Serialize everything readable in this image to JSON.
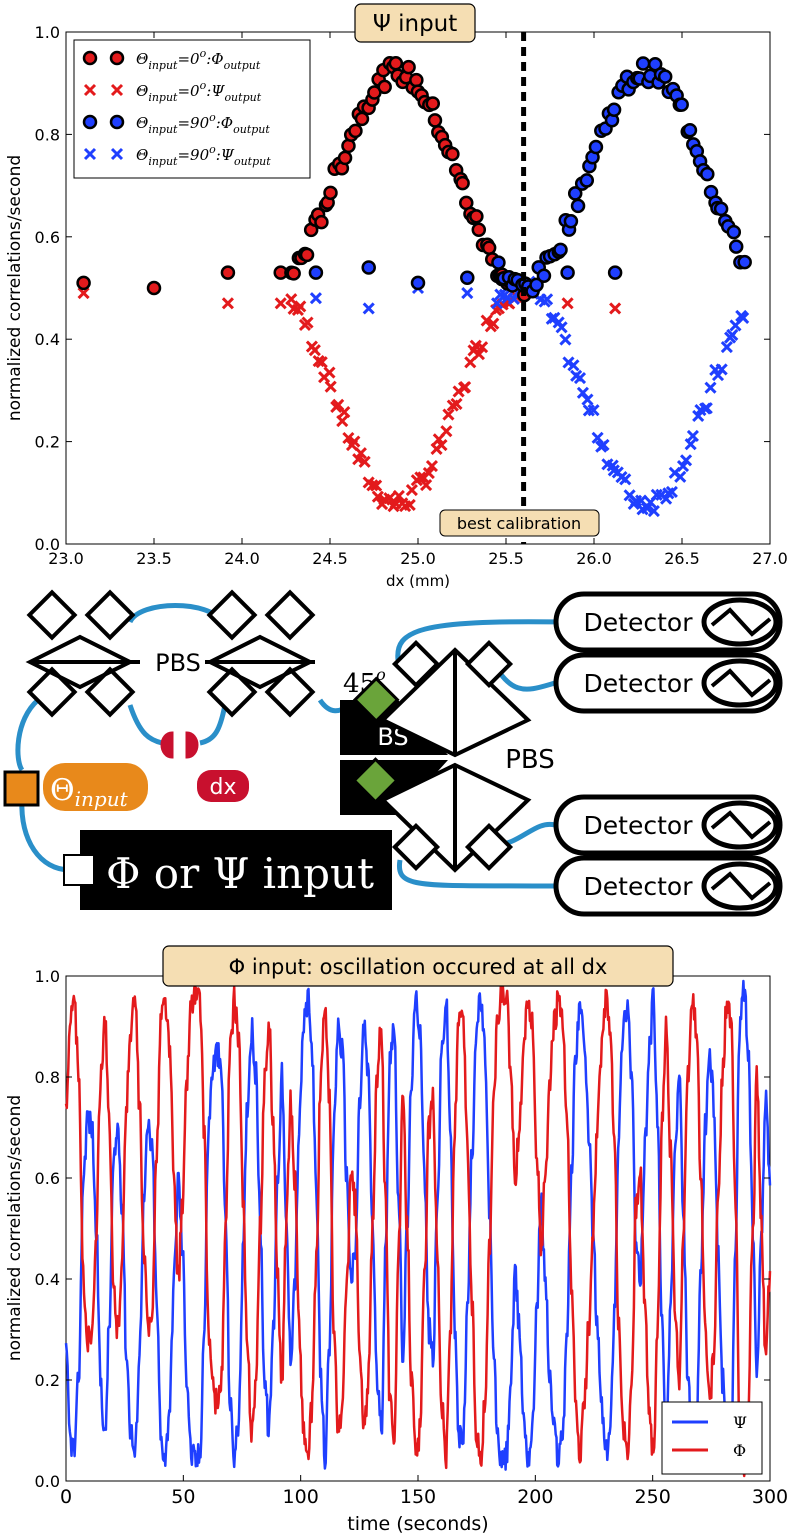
{
  "chart_data": [
    {
      "type": "scatter",
      "title": "Ψ input",
      "xlabel": "dx (mm)",
      "ylabel": "normalized correlations/second",
      "xlim": [
        23.0,
        27.0
      ],
      "ylim": [
        0.0,
        1.0
      ],
      "x_ticks": [
        "23.0",
        "23.5",
        "24.0",
        "24.5",
        "25.0",
        "25.5",
        "26.0",
        "26.5",
        "27.0"
      ],
      "y_ticks": [
        "0.0",
        "0.2",
        "0.4",
        "0.6",
        "0.8",
        "1.0"
      ],
      "annotation": {
        "label": "best calibration",
        "x": 25.6
      },
      "legend_position": "top-left",
      "series": [
        {
          "name": "Θinput = 0°: Φoutput",
          "sub": "input",
          "sub2": "output",
          "deg": "0",
          "letter": "Φ",
          "marker": "circle",
          "color": "#e31a1c",
          "scatter_points": [
            [
              23.1,
              0.51
            ],
            [
              23.5,
              0.5
            ],
            [
              23.92,
              0.53
            ],
            [
              24.22,
              0.53
            ]
          ],
          "wave": {
            "x0": 24.28,
            "x1": 25.6,
            "center": 24.88,
            "amp": 0.42,
            "base": 0.515,
            "period": 1.42,
            "n": 70
          }
        },
        {
          "name": "Θinput = 0°: Ψoutput",
          "sub": "input",
          "sub2": "output",
          "deg": "0",
          "letter": "Ψ",
          "marker": "x",
          "color": "#e31a1c",
          "scatter_points": [
            [
              23.1,
              0.49
            ],
            [
              23.5,
              0.5
            ],
            [
              23.92,
              0.47
            ],
            [
              24.22,
              0.47
            ],
            [
              25.85,
              0.47
            ],
            [
              26.12,
              0.46
            ]
          ],
          "wave": {
            "x0": 24.28,
            "x1": 25.6,
            "center": 24.88,
            "amp": -0.42,
            "base": 0.5,
            "period": 1.42,
            "n": 70
          }
        },
        {
          "name": "Θinput = 90°: Φoutput",
          "sub": "input",
          "sub2": "output",
          "deg": "90",
          "letter": "Φ",
          "marker": "circle",
          "color": "#1f3fff",
          "scatter_points": [
            [
              24.42,
              0.53
            ],
            [
              24.72,
              0.54
            ],
            [
              25.0,
              0.51
            ],
            [
              25.28,
              0.52
            ],
            [
              25.85,
              0.53
            ],
            [
              26.12,
              0.53
            ]
          ],
          "wave": {
            "x0": 25.45,
            "x1": 26.85,
            "center": 26.3,
            "amp": 0.42,
            "base": 0.515,
            "period": 1.42,
            "n": 70
          }
        },
        {
          "name": "Θinput = 90°: Ψoutput",
          "sub": "input",
          "sub2": "output",
          "deg": "90",
          "letter": "Ψ",
          "marker": "x",
          "color": "#1f3fff",
          "scatter_points": [
            [
              24.42,
              0.48
            ],
            [
              24.72,
              0.46
            ],
            [
              25.0,
              0.5
            ],
            [
              25.28,
              0.49
            ]
          ],
          "wave": {
            "x0": 25.45,
            "x1": 26.85,
            "center": 26.3,
            "amp": -0.42,
            "base": 0.5,
            "period": 1.42,
            "n": 70
          }
        }
      ]
    },
    {
      "type": "line",
      "title": "Φ input: oscillation occured at all dx",
      "xlabel": "time (seconds)",
      "ylabel": "normalized correlations/second",
      "xlim": [
        0,
        300
      ],
      "ylim": [
        0.0,
        1.0
      ],
      "x_ticks": [
        "0",
        "50",
        "100",
        "150",
        "200",
        "250",
        "300"
      ],
      "y_ticks": [
        "0.0",
        "0.2",
        "0.4",
        "0.6",
        "0.8",
        "1.0"
      ],
      "legend_position": "bottom-right",
      "series": [
        {
          "name": "Ψ",
          "color": "#1f3fff",
          "values": [
            0.25,
            0.08,
            0.06,
            0.22,
            0.6,
            0.72,
            0.7,
            0.5,
            0.2,
            0.08,
            0.3,
            0.62,
            0.7,
            0.55,
            0.25,
            0.1,
            0.05,
            0.25,
            0.55,
            0.7,
            0.65,
            0.35,
            0.08,
            0.05,
            0.15,
            0.4,
            0.6,
            0.45,
            0.2,
            0.05,
            0.04,
            0.05,
            0.3,
            0.7,
            0.82,
            0.85,
            0.8,
            0.5,
            0.15,
            0.05,
            0.12,
            0.45,
            0.75,
            0.9,
            0.8,
            0.5,
            0.2,
            0.1,
            0.3,
            0.6,
            0.8,
            0.5,
            0.25,
            0.4,
            0.7,
            0.9,
            0.95,
            0.85,
            0.55,
            0.2,
            0.05,
            0.25,
            0.7,
            0.9,
            0.85,
            0.6,
            0.4,
            0.45,
            0.75,
            0.9,
            0.8,
            0.5,
            0.2,
            0.1,
            0.45,
            0.85,
            0.9,
            0.55,
            0.25,
            0.5,
            0.8,
            0.95,
            0.9,
            0.6,
            0.3,
            0.25,
            0.55,
            0.85,
            0.95,
            0.7,
            0.3,
            0.08,
            0.1,
            0.35,
            0.65,
            0.9,
            0.95,
            0.85,
            0.55,
            0.25,
            0.08,
            0.03,
            0.05,
            0.2,
            0.4,
            0.3,
            0.12,
            0.05,
            0.1,
            0.35,
            0.55,
            0.4,
            0.2,
            0.1,
            0.05,
            0.1,
            0.3,
            0.6,
            0.85,
            0.95,
            0.85,
            0.7,
            0.5,
            0.3,
            0.15,
            0.05,
            0.1,
            0.35,
            0.7,
            0.9,
            0.95,
            0.8,
            0.45,
            0.4,
            0.65,
            0.85,
            0.95,
            0.7,
            0.3,
            0.1,
            0.35,
            0.65,
            0.8,
            0.5,
            0.2,
            0.05,
            0.1,
            0.4,
            0.7,
            0.85,
            0.75,
            0.45,
            0.2,
            0.05,
            0.1,
            0.45,
            0.9,
            0.98,
            0.85,
            0.5,
            0.2,
            0.5,
            0.75,
            0.6
          ]
        },
        {
          "name": "Φ",
          "color": "#e31a1c",
          "values": [
            0.75,
            0.92,
            0.94,
            0.78,
            0.4,
            0.28,
            0.3,
            0.5,
            0.8,
            0.92,
            0.7,
            0.38,
            0.3,
            0.45,
            0.75,
            0.9,
            0.95,
            0.75,
            0.45,
            0.3,
            0.35,
            0.65,
            0.92,
            0.95,
            0.85,
            0.6,
            0.4,
            0.55,
            0.8,
            0.95,
            0.96,
            0.95,
            0.7,
            0.3,
            0.18,
            0.15,
            0.2,
            0.5,
            0.85,
            0.95,
            0.88,
            0.55,
            0.25,
            0.1,
            0.2,
            0.5,
            0.8,
            0.9,
            0.7,
            0.4,
            0.2,
            0.5,
            0.75,
            0.6,
            0.3,
            0.1,
            0.05,
            0.15,
            0.45,
            0.8,
            0.95,
            0.75,
            0.3,
            0.1,
            0.15,
            0.4,
            0.6,
            0.55,
            0.25,
            0.1,
            0.2,
            0.5,
            0.8,
            0.9,
            0.55,
            0.15,
            0.1,
            0.45,
            0.75,
            0.5,
            0.2,
            0.05,
            0.1,
            0.4,
            0.7,
            0.75,
            0.45,
            0.15,
            0.05,
            0.3,
            0.7,
            0.92,
            0.9,
            0.65,
            0.35,
            0.1,
            0.05,
            0.15,
            0.45,
            0.75,
            0.92,
            0.97,
            0.95,
            0.8,
            0.6,
            0.7,
            0.88,
            0.95,
            0.9,
            0.65,
            0.45,
            0.6,
            0.8,
            0.9,
            0.95,
            0.9,
            0.7,
            0.4,
            0.15,
            0.05,
            0.15,
            0.3,
            0.5,
            0.7,
            0.85,
            0.95,
            0.9,
            0.65,
            0.3,
            0.1,
            0.05,
            0.2,
            0.55,
            0.6,
            0.35,
            0.15,
            0.05,
            0.3,
            0.7,
            0.9,
            0.65,
            0.35,
            0.2,
            0.5,
            0.8,
            0.95,
            0.9,
            0.6,
            0.3,
            0.15,
            0.25,
            0.55,
            0.8,
            0.95,
            0.9,
            0.55,
            0.1,
            0.02,
            0.15,
            0.5,
            0.8,
            0.5,
            0.25,
            0.4
          ]
        }
      ]
    }
  ],
  "diagram": {
    "pbs_top_label": "PBS",
    "pbs_right_label": "PBS",
    "bs_label": "BS",
    "angle_label": "45",
    "angle_sup": "o",
    "theta_label": "Θ",
    "theta_sub": "input",
    "dx_label": "dx",
    "source_label": "Φ or Ψ input",
    "detector_labels": [
      "Detector",
      "Detector",
      "Detector",
      "Detector"
    ]
  }
}
